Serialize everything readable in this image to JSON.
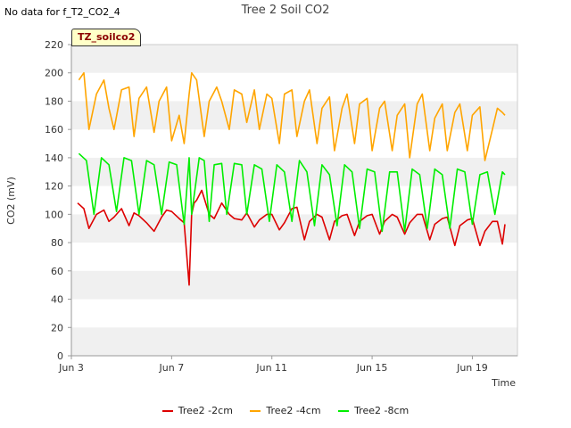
{
  "header": {
    "nodata_text": "No data for f_T2_CO2_4",
    "title": "Tree 2 Soil CO2",
    "badge": "TZ_soilco2"
  },
  "colors": {
    "tree2_2cm": "#dd0000",
    "tree2_4cm": "#ffa500",
    "tree2_8cm": "#00ee00",
    "band": "#f0f0f0"
  },
  "chart_data": {
    "type": "line",
    "title": "Tree 2 Soil CO2",
    "xlabel": "Time",
    "ylabel": "CO2 (mV)",
    "xlim": [
      3.0,
      20.8
    ],
    "ylim": [
      0,
      220
    ],
    "yticks": [
      0,
      20,
      40,
      60,
      80,
      100,
      120,
      140,
      160,
      180,
      200,
      220
    ],
    "xticks": [
      {
        "value": 3,
        "label": "Jun 3"
      },
      {
        "value": 7,
        "label": "Jun 7"
      },
      {
        "value": 11,
        "label": "Jun 11"
      },
      {
        "value": 15,
        "label": "Jun 15"
      },
      {
        "value": 19,
        "label": "Jun 19"
      }
    ],
    "legend_position": "bottom",
    "series": [
      {
        "name": "Tree2 -2cm",
        "color": "#dd0000",
        "x": [
          3.25,
          3.5,
          3.7,
          4.0,
          4.3,
          4.5,
          4.7,
          5.0,
          5.3,
          5.5,
          5.7,
          6.0,
          6.3,
          6.6,
          6.8,
          7.0,
          7.3,
          7.5,
          7.7,
          7.8,
          7.9,
          8.0,
          8.2,
          8.5,
          8.7,
          9.0,
          9.3,
          9.5,
          9.8,
          10.0,
          10.3,
          10.5,
          10.8,
          11.0,
          11.3,
          11.5,
          11.8,
          12.0,
          12.3,
          12.5,
          12.8,
          13.0,
          13.3,
          13.5,
          13.8,
          14.0,
          14.3,
          14.5,
          14.8,
          15.0,
          15.3,
          15.5,
          15.8,
          16.0,
          16.3,
          16.5,
          16.8,
          17.0,
          17.3,
          17.5,
          17.8,
          18.0,
          18.3,
          18.5,
          18.8,
          19.0,
          19.3,
          19.5,
          19.8,
          20.0,
          20.2,
          20.3
        ],
        "values": [
          108,
          104,
          90,
          100,
          103,
          95,
          98,
          104,
          92,
          101,
          99,
          94,
          88,
          98,
          103,
          102,
          97,
          94,
          50,
          100,
          108,
          110,
          117,
          100,
          97,
          108,
          100,
          97,
          96,
          101,
          91,
          96,
          100,
          100,
          89,
          94,
          104,
          105,
          82,
          95,
          100,
          98,
          82,
          95,
          99,
          100,
          85,
          95,
          99,
          100,
          86,
          95,
          100,
          98,
          86,
          94,
          100,
          100,
          82,
          93,
          97,
          98,
          78,
          92,
          96,
          97,
          78,
          88,
          95,
          95,
          79,
          93
        ]
      },
      {
        "name": "Tree2 -4cm",
        "color": "#ffa500",
        "x": [
          3.3,
          3.5,
          3.7,
          4.0,
          4.3,
          4.5,
          4.7,
          5.0,
          5.3,
          5.5,
          5.7,
          6.0,
          6.3,
          6.5,
          6.8,
          7.0,
          7.3,
          7.5,
          7.7,
          7.8,
          8.0,
          8.3,
          8.5,
          8.8,
          9.0,
          9.3,
          9.5,
          9.8,
          10.0,
          10.3,
          10.5,
          10.8,
          11.0,
          11.3,
          11.5,
          11.8,
          12.0,
          12.3,
          12.5,
          12.8,
          13.0,
          13.3,
          13.5,
          13.8,
          14.0,
          14.3,
          14.5,
          14.8,
          15.0,
          15.3,
          15.5,
          15.8,
          16.0,
          16.3,
          16.5,
          16.8,
          17.0,
          17.3,
          17.5,
          17.8,
          18.0,
          18.3,
          18.5,
          18.8,
          19.0,
          19.3,
          19.5,
          19.8,
          20.0,
          20.2,
          20.3
        ],
        "values": [
          195,
          200,
          160,
          185,
          195,
          175,
          160,
          188,
          190,
          155,
          182,
          190,
          158,
          180,
          190,
          152,
          170,
          150,
          185,
          200,
          195,
          155,
          180,
          190,
          180,
          160,
          188,
          185,
          165,
          188,
          160,
          185,
          182,
          150,
          185,
          188,
          155,
          180,
          188,
          150,
          175,
          183,
          145,
          175,
          185,
          150,
          178,
          182,
          145,
          175,
          180,
          145,
          170,
          178,
          140,
          178,
          185,
          145,
          168,
          178,
          145,
          172,
          178,
          145,
          170,
          176,
          138,
          160,
          175,
          172,
          170
        ]
      },
      {
        "name": "Tree2 -8cm",
        "color": "#00ee00",
        "x": [
          3.3,
          3.6,
          3.9,
          4.2,
          4.5,
          4.8,
          5.1,
          5.4,
          5.7,
          6.0,
          6.3,
          6.6,
          6.9,
          7.2,
          7.5,
          7.7,
          7.8,
          8.1,
          8.3,
          8.5,
          8.7,
          9.0,
          9.2,
          9.5,
          9.8,
          10.0,
          10.3,
          10.6,
          10.9,
          11.2,
          11.5,
          11.8,
          12.1,
          12.4,
          12.7,
          13.0,
          13.3,
          13.6,
          13.9,
          14.2,
          14.5,
          14.8,
          15.1,
          15.4,
          15.7,
          16.0,
          16.3,
          16.6,
          16.9,
          17.2,
          17.5,
          17.8,
          18.1,
          18.4,
          18.7,
          19.0,
          19.3,
          19.6,
          19.9,
          20.2,
          20.3
        ],
        "values": [
          143,
          138,
          100,
          140,
          135,
          102,
          140,
          138,
          100,
          138,
          135,
          100,
          137,
          135,
          93,
          140,
          100,
          140,
          138,
          95,
          135,
          136,
          100,
          136,
          135,
          100,
          135,
          132,
          95,
          135,
          130,
          95,
          138,
          130,
          92,
          135,
          128,
          92,
          135,
          130,
          90,
          132,
          130,
          88,
          130,
          130,
          88,
          132,
          128,
          90,
          132,
          128,
          90,
          132,
          130,
          93,
          128,
          130,
          100,
          130,
          128
        ]
      }
    ]
  }
}
